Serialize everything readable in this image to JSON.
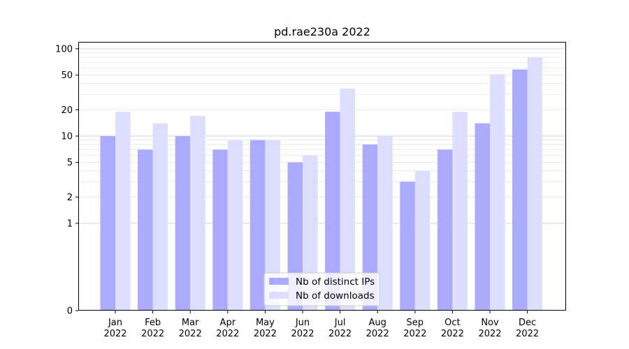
{
  "chart_data": {
    "type": "bar",
    "title": "pd.rae230a 2022",
    "xlabel": "",
    "ylabel": "",
    "yscale": "symlog",
    "ylim": [
      0,
      120
    ],
    "yticks": [
      0,
      1,
      2,
      5,
      10,
      20,
      50,
      100
    ],
    "ytick_labels": [
      "0",
      "1",
      "2",
      "5",
      "10",
      "20",
      "50",
      "100"
    ],
    "grid": true,
    "legend_position": "bottom-center",
    "categories": [
      "Jan\n2022",
      "Feb\n2022",
      "Mar\n2022",
      "Apr\n2022",
      "May\n2022",
      "Jun\n2022",
      "Jul\n2022",
      "Aug\n2022",
      "Sep\n2022",
      "Oct\n2022",
      "Nov\n2022",
      "Dec\n2022"
    ],
    "category_lines": [
      [
        "Jan",
        "2022"
      ],
      [
        "Feb",
        "2022"
      ],
      [
        "Mar",
        "2022"
      ],
      [
        "Apr",
        "2022"
      ],
      [
        "May",
        "2022"
      ],
      [
        "Jun",
        "2022"
      ],
      [
        "Jul",
        "2022"
      ],
      [
        "Aug",
        "2022"
      ],
      [
        "Sep",
        "2022"
      ],
      [
        "Oct",
        "2022"
      ],
      [
        "Nov",
        "2022"
      ],
      [
        "Dec",
        "2022"
      ]
    ],
    "series": [
      {
        "name": "Nb of distinct IPs",
        "color": "#aaaaff",
        "values": [
          10,
          7,
          10,
          7,
          9,
          5,
          19,
          8,
          3,
          7,
          14,
          58
        ]
      },
      {
        "name": "Nb of downloads",
        "color": "#ddddff",
        "values": [
          19,
          14,
          17,
          9,
          9,
          6,
          35,
          10,
          4,
          19,
          51,
          80
        ]
      }
    ]
  }
}
